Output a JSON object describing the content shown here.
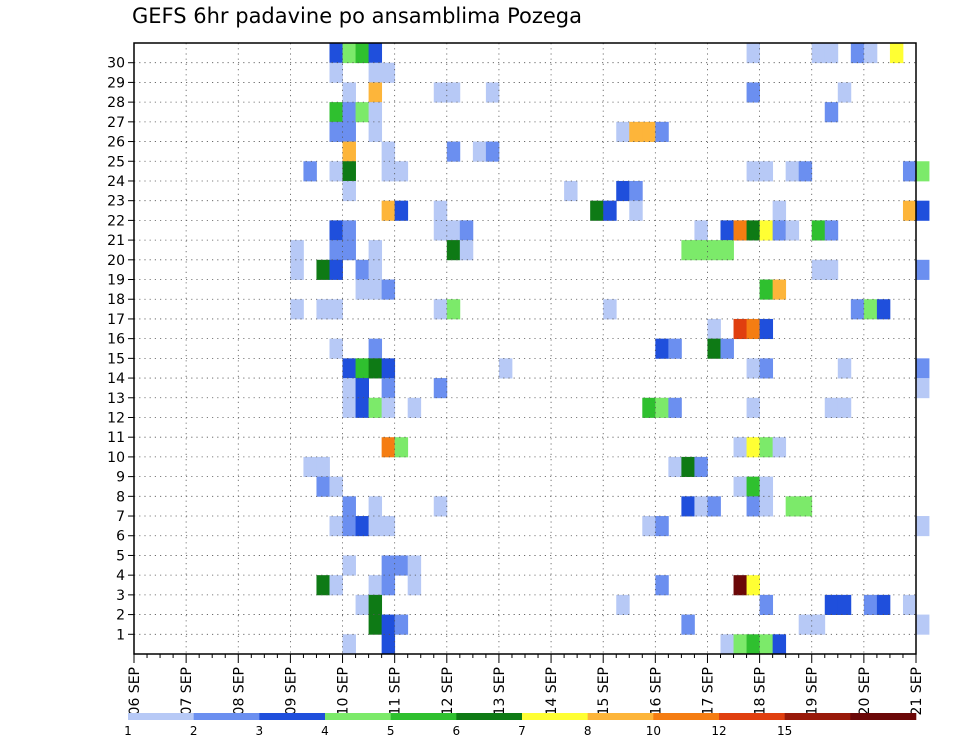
{
  "chart_data": {
    "type": "heatmap",
    "title": "GEFS 6hr padavine po ansamblima Pozega",
    "x_categories": [
      "06 SEP",
      "07 SEP",
      "08 SEP",
      "09 SEP",
      "10 SEP",
      "11 SEP",
      "12 SEP",
      "13 SEP",
      "14 SEP",
      "15 SEP",
      "16 SEP",
      "17 SEP",
      "18 SEP",
      "19 SEP",
      "20 SEP",
      "21 SEP"
    ],
    "x_steps_per_day": 4,
    "y_categories": [
      "1",
      "2",
      "3",
      "4",
      "5",
      "6",
      "7",
      "8",
      "9",
      "10",
      "11",
      "12",
      "13",
      "14",
      "15",
      "16",
      "17",
      "18",
      "19",
      "20",
      "21",
      "22",
      "23",
      "24",
      "25",
      "26",
      "27",
      "28",
      "29",
      "30"
    ],
    "grid": true,
    "colorbar": {
      "labels": [
        "1",
        "2",
        "3",
        "4",
        "5",
        "6",
        "7",
        "8",
        "10",
        "12",
        "15",
        "20"
      ],
      "colors": [
        "#b7c9f6",
        "#6b8ff0",
        "#1f4fdc",
        "#7cea6a",
        "#2fc02f",
        "#0e7a15",
        "#ffff33",
        "#fdb53a",
        "#f57d12",
        "#e03f0f",
        "#991a0a",
        "#6b0808"
      ]
    },
    "cells": [
      {
        "member": 30,
        "step": 15,
        "bin": 3
      },
      {
        "member": 30,
        "step": 16,
        "bin": 4
      },
      {
        "member": 30,
        "step": 17,
        "bin": 5
      },
      {
        "member": 30,
        "step": 18,
        "bin": 3
      },
      {
        "member": 30,
        "step": 47,
        "bin": 1
      },
      {
        "member": 30,
        "step": 52,
        "bin": 1
      },
      {
        "member": 30,
        "step": 53,
        "bin": 1
      },
      {
        "member": 30,
        "step": 55,
        "bin": 2
      },
      {
        "member": 30,
        "step": 56,
        "bin": 1
      },
      {
        "member": 30,
        "step": 58,
        "bin": 7
      },
      {
        "member": 29,
        "step": 15,
        "bin": 1
      },
      {
        "member": 29,
        "step": 18,
        "bin": 1
      },
      {
        "member": 29,
        "step": 19,
        "bin": 1
      },
      {
        "member": 28,
        "step": 16,
        "bin": 1
      },
      {
        "member": 28,
        "step": 18,
        "bin": 8
      },
      {
        "member": 28,
        "step": 23,
        "bin": 1
      },
      {
        "member": 28,
        "step": 24,
        "bin": 1
      },
      {
        "member": 28,
        "step": 27,
        "bin": 1
      },
      {
        "member": 28,
        "step": 47,
        "bin": 2
      },
      {
        "member": 28,
        "step": 54,
        "bin": 1
      },
      {
        "member": 27,
        "step": 15,
        "bin": 5
      },
      {
        "member": 27,
        "step": 16,
        "bin": 2
      },
      {
        "member": 27,
        "step": 17,
        "bin": 4
      },
      {
        "member": 27,
        "step": 18,
        "bin": 1
      },
      {
        "member": 27,
        "step": 53,
        "bin": 2
      },
      {
        "member": 26,
        "step": 15,
        "bin": 2
      },
      {
        "member": 26,
        "step": 16,
        "bin": 2
      },
      {
        "member": 26,
        "step": 18,
        "bin": 1
      },
      {
        "member": 26,
        "step": 37,
        "bin": 1
      },
      {
        "member": 26,
        "step": 38,
        "bin": 8
      },
      {
        "member": 26,
        "step": 39,
        "bin": 8
      },
      {
        "member": 26,
        "step": 40,
        "bin": 2
      },
      {
        "member": 25,
        "step": 16,
        "bin": 8
      },
      {
        "member": 25,
        "step": 19,
        "bin": 1
      },
      {
        "member": 25,
        "step": 24,
        "bin": 2
      },
      {
        "member": 25,
        "step": 26,
        "bin": 1
      },
      {
        "member": 25,
        "step": 27,
        "bin": 2
      },
      {
        "member": 24,
        "step": 13,
        "bin": 2
      },
      {
        "member": 24,
        "step": 15,
        "bin": 1
      },
      {
        "member": 24,
        "step": 16,
        "bin": 6
      },
      {
        "member": 24,
        "step": 19,
        "bin": 1
      },
      {
        "member": 24,
        "step": 20,
        "bin": 1
      },
      {
        "member": 24,
        "step": 47,
        "bin": 1
      },
      {
        "member": 24,
        "step": 48,
        "bin": 1
      },
      {
        "member": 24,
        "step": 50,
        "bin": 1
      },
      {
        "member": 24,
        "step": 51,
        "bin": 2
      },
      {
        "member": 24,
        "step": 59,
        "bin": 2
      },
      {
        "member": 24,
        "step": 60,
        "bin": 4
      },
      {
        "member": 23,
        "step": 16,
        "bin": 1
      },
      {
        "member": 23,
        "step": 33,
        "bin": 1
      },
      {
        "member": 23,
        "step": 37,
        "bin": 3
      },
      {
        "member": 23,
        "step": 38,
        "bin": 2
      },
      {
        "member": 22,
        "step": 19,
        "bin": 8
      },
      {
        "member": 22,
        "step": 20,
        "bin": 3
      },
      {
        "member": 22,
        "step": 23,
        "bin": 1
      },
      {
        "member": 22,
        "step": 35,
        "bin": 6
      },
      {
        "member": 22,
        "step": 36,
        "bin": 3
      },
      {
        "member": 22,
        "step": 38,
        "bin": 1
      },
      {
        "member": 22,
        "step": 49,
        "bin": 1
      },
      {
        "member": 22,
        "step": 59,
        "bin": 8
      },
      {
        "member": 22,
        "step": 60,
        "bin": 3
      },
      {
        "member": 21,
        "step": 15,
        "bin": 3
      },
      {
        "member": 21,
        "step": 16,
        "bin": 2
      },
      {
        "member": 21,
        "step": 23,
        "bin": 1
      },
      {
        "member": 21,
        "step": 24,
        "bin": 1
      },
      {
        "member": 21,
        "step": 25,
        "bin": 2
      },
      {
        "member": 21,
        "step": 43,
        "bin": 1
      },
      {
        "member": 21,
        "step": 45,
        "bin": 3
      },
      {
        "member": 21,
        "step": 46,
        "bin": 9
      },
      {
        "member": 21,
        "step": 47,
        "bin": 6
      },
      {
        "member": 21,
        "step": 48,
        "bin": 7
      },
      {
        "member": 21,
        "step": 49,
        "bin": 2
      },
      {
        "member": 21,
        "step": 50,
        "bin": 1
      },
      {
        "member": 21,
        "step": 52,
        "bin": 5
      },
      {
        "member": 21,
        "step": 53,
        "bin": 2
      },
      {
        "member": 20,
        "step": 12,
        "bin": 1
      },
      {
        "member": 20,
        "step": 15,
        "bin": 2
      },
      {
        "member": 20,
        "step": 16,
        "bin": 2
      },
      {
        "member": 20,
        "step": 18,
        "bin": 1
      },
      {
        "member": 20,
        "step": 24,
        "bin": 6
      },
      {
        "member": 20,
        "step": 25,
        "bin": 1
      },
      {
        "member": 20,
        "step": 42,
        "bin": 4
      },
      {
        "member": 20,
        "step": 43,
        "bin": 4
      },
      {
        "member": 20,
        "step": 44,
        "bin": 4
      },
      {
        "member": 20,
        "step": 45,
        "bin": 4
      },
      {
        "member": 19,
        "step": 12,
        "bin": 1
      },
      {
        "member": 19,
        "step": 14,
        "bin": 6
      },
      {
        "member": 19,
        "step": 15,
        "bin": 3
      },
      {
        "member": 19,
        "step": 17,
        "bin": 2
      },
      {
        "member": 19,
        "step": 18,
        "bin": 1
      },
      {
        "member": 19,
        "step": 52,
        "bin": 1
      },
      {
        "member": 19,
        "step": 53,
        "bin": 1
      },
      {
        "member": 19,
        "step": 60,
        "bin": 2
      },
      {
        "member": 18,
        "step": 17,
        "bin": 1
      },
      {
        "member": 18,
        "step": 18,
        "bin": 1
      },
      {
        "member": 18,
        "step": 19,
        "bin": 2
      },
      {
        "member": 18,
        "step": 48,
        "bin": 5
      },
      {
        "member": 18,
        "step": 49,
        "bin": 8
      },
      {
        "member": 17,
        "step": 12,
        "bin": 1
      },
      {
        "member": 17,
        "step": 14,
        "bin": 1
      },
      {
        "member": 17,
        "step": 15,
        "bin": 1
      },
      {
        "member": 17,
        "step": 23,
        "bin": 1
      },
      {
        "member": 17,
        "step": 24,
        "bin": 4
      },
      {
        "member": 17,
        "step": 36,
        "bin": 1
      },
      {
        "member": 17,
        "step": 55,
        "bin": 2
      },
      {
        "member": 17,
        "step": 56,
        "bin": 4
      },
      {
        "member": 17,
        "step": 57,
        "bin": 3
      },
      {
        "member": 16,
        "step": 44,
        "bin": 1
      },
      {
        "member": 16,
        "step": 46,
        "bin": 10
      },
      {
        "member": 16,
        "step": 47,
        "bin": 9
      },
      {
        "member": 16,
        "step": 48,
        "bin": 3
      },
      {
        "member": 15,
        "step": 15,
        "bin": 1
      },
      {
        "member": 15,
        "step": 18,
        "bin": 2
      },
      {
        "member": 15,
        "step": 40,
        "bin": 3
      },
      {
        "member": 15,
        "step": 41,
        "bin": 2
      },
      {
        "member": 15,
        "step": 44,
        "bin": 6
      },
      {
        "member": 15,
        "step": 45,
        "bin": 2
      },
      {
        "member": 14,
        "step": 16,
        "bin": 3
      },
      {
        "member": 14,
        "step": 17,
        "bin": 5
      },
      {
        "member": 14,
        "step": 18,
        "bin": 6
      },
      {
        "member": 14,
        "step": 19,
        "bin": 3
      },
      {
        "member": 14,
        "step": 28,
        "bin": 1
      },
      {
        "member": 14,
        "step": 47,
        "bin": 1
      },
      {
        "member": 14,
        "step": 48,
        "bin": 2
      },
      {
        "member": 14,
        "step": 54,
        "bin": 1
      },
      {
        "member": 14,
        "step": 60,
        "bin": 2
      },
      {
        "member": 13,
        "step": 16,
        "bin": 1
      },
      {
        "member": 13,
        "step": 17,
        "bin": 3
      },
      {
        "member": 13,
        "step": 19,
        "bin": 2
      },
      {
        "member": 13,
        "step": 23,
        "bin": 2
      },
      {
        "member": 13,
        "step": 60,
        "bin": 1
      },
      {
        "member": 12,
        "step": 16,
        "bin": 1
      },
      {
        "member": 12,
        "step": 17,
        "bin": 3
      },
      {
        "member": 12,
        "step": 18,
        "bin": 4
      },
      {
        "member": 12,
        "step": 19,
        "bin": 1
      },
      {
        "member": 12,
        "step": 21,
        "bin": 1
      },
      {
        "member": 12,
        "step": 39,
        "bin": 5
      },
      {
        "member": 12,
        "step": 40,
        "bin": 4
      },
      {
        "member": 12,
        "step": 41,
        "bin": 2
      },
      {
        "member": 12,
        "step": 47,
        "bin": 1
      },
      {
        "member": 12,
        "step": 53,
        "bin": 1
      },
      {
        "member": 12,
        "step": 54,
        "bin": 1
      },
      {
        "member": 10,
        "step": 19,
        "bin": 9
      },
      {
        "member": 10,
        "step": 20,
        "bin": 4
      },
      {
        "member": 10,
        "step": 46,
        "bin": 1
      },
      {
        "member": 10,
        "step": 47,
        "bin": 7
      },
      {
        "member": 10,
        "step": 48,
        "bin": 4
      },
      {
        "member": 10,
        "step": 49,
        "bin": 1
      },
      {
        "member": 9,
        "step": 13,
        "bin": 1
      },
      {
        "member": 9,
        "step": 14,
        "bin": 1
      },
      {
        "member": 9,
        "step": 41,
        "bin": 1
      },
      {
        "member": 9,
        "step": 42,
        "bin": 6
      },
      {
        "member": 9,
        "step": 43,
        "bin": 2
      },
      {
        "member": 8,
        "step": 14,
        "bin": 2
      },
      {
        "member": 8,
        "step": 15,
        "bin": 1
      },
      {
        "member": 8,
        "step": 46,
        "bin": 1
      },
      {
        "member": 8,
        "step": 47,
        "bin": 5
      },
      {
        "member": 8,
        "step": 48,
        "bin": 1
      },
      {
        "member": 7,
        "step": 16,
        "bin": 2
      },
      {
        "member": 7,
        "step": 18,
        "bin": 1
      },
      {
        "member": 7,
        "step": 23,
        "bin": 1
      },
      {
        "member": 7,
        "step": 42,
        "bin": 3
      },
      {
        "member": 7,
        "step": 43,
        "bin": 1
      },
      {
        "member": 7,
        "step": 44,
        "bin": 2
      },
      {
        "member": 7,
        "step": 47,
        "bin": 2
      },
      {
        "member": 7,
        "step": 48,
        "bin": 1
      },
      {
        "member": 7,
        "step": 50,
        "bin": 4
      },
      {
        "member": 7,
        "step": 51,
        "bin": 4
      },
      {
        "member": 6,
        "step": 15,
        "bin": 1
      },
      {
        "member": 6,
        "step": 16,
        "bin": 2
      },
      {
        "member": 6,
        "step": 17,
        "bin": 3
      },
      {
        "member": 6,
        "step": 18,
        "bin": 1
      },
      {
        "member": 6,
        "step": 19,
        "bin": 1
      },
      {
        "member": 6,
        "step": 39,
        "bin": 1
      },
      {
        "member": 6,
        "step": 40,
        "bin": 2
      },
      {
        "member": 6,
        "step": 60,
        "bin": 1
      },
      {
        "member": 4,
        "step": 16,
        "bin": 1
      },
      {
        "member": 4,
        "step": 19,
        "bin": 2
      },
      {
        "member": 4,
        "step": 20,
        "bin": 2
      },
      {
        "member": 4,
        "step": 21,
        "bin": 1
      },
      {
        "member": 3,
        "step": 14,
        "bin": 6
      },
      {
        "member": 3,
        "step": 15,
        "bin": 1
      },
      {
        "member": 3,
        "step": 18,
        "bin": 1
      },
      {
        "member": 3,
        "step": 19,
        "bin": 2
      },
      {
        "member": 3,
        "step": 21,
        "bin": 1
      },
      {
        "member": 3,
        "step": 40,
        "bin": 2
      },
      {
        "member": 3,
        "step": 46,
        "bin": 12
      },
      {
        "member": 3,
        "step": 47,
        "bin": 7
      },
      {
        "member": 2,
        "step": 17,
        "bin": 1
      },
      {
        "member": 2,
        "step": 18,
        "bin": 6
      },
      {
        "member": 2,
        "step": 37,
        "bin": 1
      },
      {
        "member": 2,
        "step": 48,
        "bin": 2
      },
      {
        "member": 2,
        "step": 53,
        "bin": 3
      },
      {
        "member": 2,
        "step": 54,
        "bin": 3
      },
      {
        "member": 2,
        "step": 56,
        "bin": 2
      },
      {
        "member": 2,
        "step": 57,
        "bin": 3
      },
      {
        "member": 2,
        "step": 59,
        "bin": 1
      },
      {
        "member": 1,
        "step": 18,
        "bin": 6
      },
      {
        "member": 1,
        "step": 19,
        "bin": 3
      },
      {
        "member": 1,
        "step": 20,
        "bin": 2
      },
      {
        "member": 1,
        "step": 42,
        "bin": 2
      },
      {
        "member": 1,
        "step": 51,
        "bin": 1
      },
      {
        "member": 1,
        "step": 52,
        "bin": 1
      },
      {
        "member": 1,
        "step": 60,
        "bin": 1
      },
      {
        "member": 0,
        "step": 16,
        "bin": 1
      },
      {
        "member": 0,
        "step": 19,
        "bin": 3
      },
      {
        "member": 0,
        "step": 45,
        "bin": 1
      },
      {
        "member": 0,
        "step": 46,
        "bin": 4
      },
      {
        "member": 0,
        "step": 47,
        "bin": 5
      },
      {
        "member": 0,
        "step": 48,
        "bin": 4
      },
      {
        "member": 0,
        "step": 49,
        "bin": 3
      }
    ]
  }
}
